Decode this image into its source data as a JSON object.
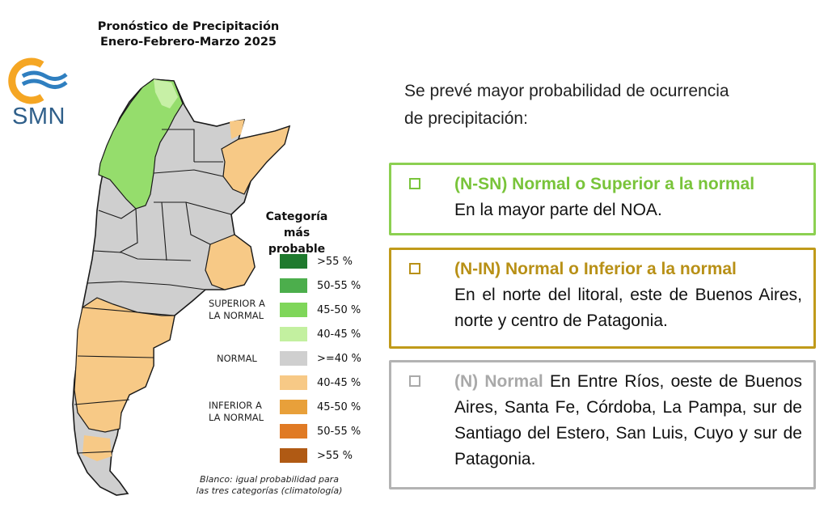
{
  "map": {
    "title_line1": "Pronóstico de Precipitación",
    "title_line2": "Enero-Febrero-Marzo 2025",
    "logo_text": "SMN",
    "colors": {
      "normal": "#cfcfcf",
      "sup_40_45": "#c7f0a6",
      "sup_45_50": "#95dd6c",
      "inf_40_45": "#f7c986",
      "border": "#1a1a1a",
      "logo_orange": "#f5a623",
      "logo_blue": "#2f7fc0"
    }
  },
  "legend": {
    "title_line1": "Categoría más",
    "title_line2": "probable",
    "superior_label_line1": "SUPERIOR A",
    "superior_label_line2": "LA NORMAL",
    "normal_label": "NORMAL",
    "inferior_label_line1": "INFERIOR A",
    "inferior_label_line2": "LA NORMAL",
    "items": [
      {
        "label": ">55 %",
        "color": "#1f7a2e"
      },
      {
        "label": "50-55 %",
        "color": "#4cae4c"
      },
      {
        "label": "45-50 %",
        "color": "#7fd65a"
      },
      {
        "label": "40-45 %",
        "color": "#c3f0a0"
      },
      {
        "label": ">=40 %",
        "color": "#cfcfcf"
      },
      {
        "label": "40-45 %",
        "color": "#f7c986"
      },
      {
        "label": "45-50 %",
        "color": "#e8a03a"
      },
      {
        "label": "50-55 %",
        "color": "#e07a24"
      },
      {
        "label": ">55 %",
        "color": "#b05a14"
      }
    ],
    "footnote_line1": "Blanco: igual probabilidad para",
    "footnote_line2": "las tres categorías (climatología)"
  },
  "panel": {
    "intro_line1": "Se prevé mayor probabilidad de ocurrencia",
    "intro_line2": "de precipitación:",
    "boxes": [
      {
        "heading": "(N-SN) Normal o Superior a la normal",
        "text": "En la mayor parte del NOA."
      },
      {
        "heading": "(N-IN) Normal o Inferior a la normal",
        "text": "En el norte del litoral, este de Buenos Aires, norte y centro de Patagonia."
      },
      {
        "heading": "(N) Normal",
        "text": "En Entre Ríos, oeste de Buenos Aires, Santa Fe, Córdoba, La Pampa, sur de Santiago del Estero, San Luis, Cuyo y sur de Patagonia."
      }
    ]
  }
}
